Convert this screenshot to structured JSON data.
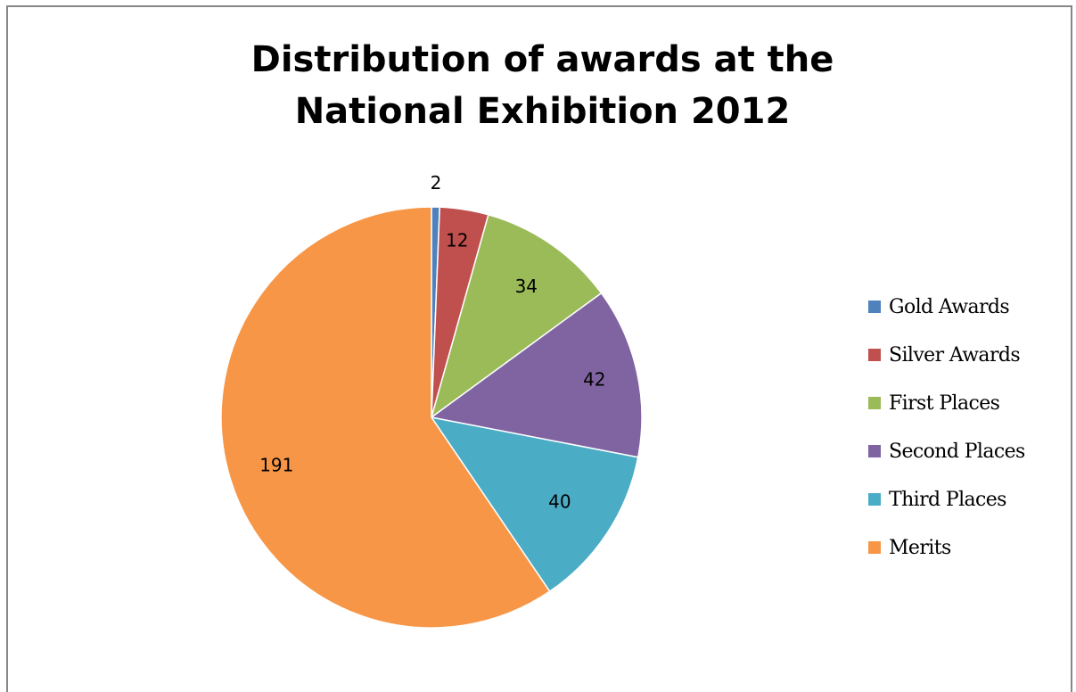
{
  "chart_data": {
    "type": "pie",
    "title": [
      "Distribution of awards at the",
      "National Exhibition 2012"
    ],
    "categories": [
      "Gold Awards",
      "Silver Awards",
      "First Places",
      "Second Places",
      "Third Places",
      "Merits"
    ],
    "values": [
      2,
      12,
      34,
      42,
      40,
      191
    ],
    "colors": [
      "#4f81bd",
      "#c0504d",
      "#9bbb59",
      "#8064a2",
      "#4bacc6",
      "#f79646"
    ],
    "data_labels": [
      "2",
      "12",
      "34",
      "42",
      "40",
      "191"
    ],
    "start_angle": "top, clockwise",
    "legend_position": "right"
  }
}
